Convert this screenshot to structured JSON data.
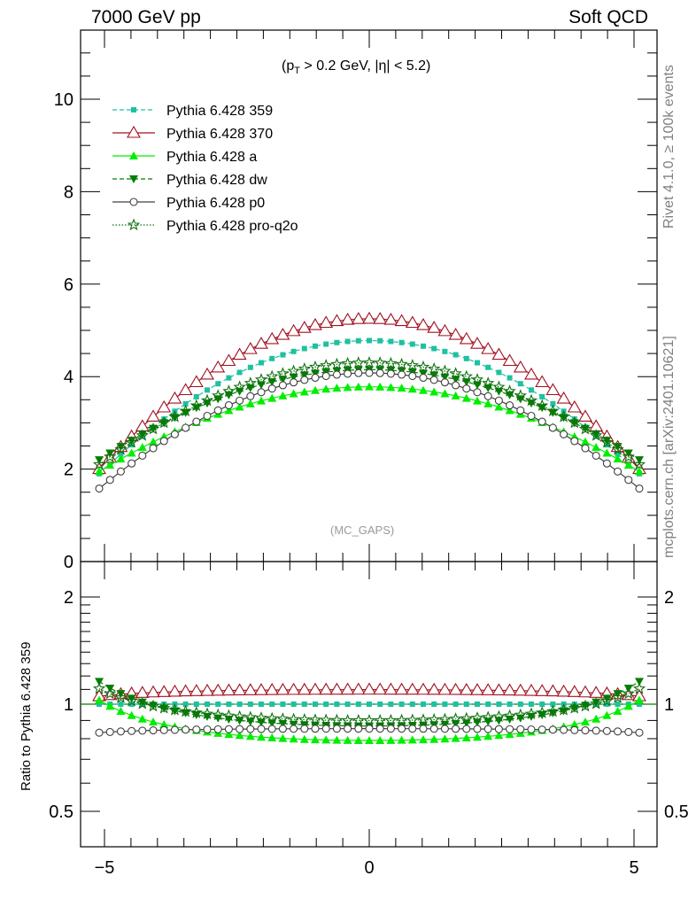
{
  "header": {
    "left": "7000 GeV pp",
    "right": "Soft QCD"
  },
  "side_labels": {
    "rivet": "Rivet 4.1.0, ≥ 100k events",
    "mcplots": "mcplots.cern.ch [arXiv:2401.10621]"
  },
  "cut_label": {
    "prefix": "(p",
    "sub": "T",
    "rest": " > 0.2 GeV, |η| < 5.2)"
  },
  "watermark": "(MC_GAPS)",
  "ratio_ylabel": "Ratio to Pythia 6.428 359",
  "colors": {
    "p359": "#20c0a0",
    "p370": "#a01020",
    "pa": "#00ee00",
    "pdw": "#008000",
    "pp0": "#404040",
    "pq2o": "#107010",
    "refline": "#008000"
  },
  "chart_data": [
    {
      "type": "line",
      "panel": "main",
      "xlim": [
        -5.35,
        5.35
      ],
      "ylim": [
        0,
        11.5
      ],
      "yticks": [
        0,
        2,
        4,
        6,
        8,
        10
      ],
      "ytick_labels": [
        "0",
        "2",
        "4",
        "6",
        "8",
        "10"
      ],
      "x_range": [
        -5.1,
        5.1
      ],
      "n_points": 51,
      "legend_position": "top-left",
      "series": [
        {
          "name": "Pythia 6.428 359",
          "key": "p359",
          "marker": "square",
          "dash": "dashed",
          "edge_value": 1.9,
          "peak_value": 4.78
        },
        {
          "name": "Pythia 6.428 370",
          "key": "p370",
          "marker": "triangle-open",
          "dash": "solid",
          "edge_value": 2.0,
          "peak_value": 5.25
        },
        {
          "name": "Pythia 6.428 a",
          "key": "pa",
          "marker": "triangle",
          "dash": "solid",
          "edge_value": 1.95,
          "peak_value": 3.78
        },
        {
          "name": "Pythia 6.428 dw",
          "key": "pdw",
          "marker": "triangle-down",
          "dash": "dashed",
          "edge_value": 2.2,
          "peak_value": 4.15
        },
        {
          "name": "Pythia 6.428 p0",
          "key": "pp0",
          "marker": "circle-open",
          "dash": "solid",
          "edge_value": 1.58,
          "peak_value": 4.08
        },
        {
          "name": "Pythia 6.428 pro-q2o",
          "key": "pq2o",
          "marker": "star-open",
          "dash": "dotted",
          "edge_value": 2.1,
          "peak_value": 4.3
        }
      ]
    },
    {
      "type": "line",
      "panel": "ratio",
      "ylabel": "Ratio to Pythia 6.428 359",
      "ylim": [
        0.4,
        2.5
      ],
      "log_y": true,
      "yticks": [
        0.5,
        1,
        2
      ],
      "ytick_labels": [
        "0.5",
        "1",
        "2"
      ],
      "xticks": [
        -5,
        0,
        5
      ],
      "xtick_labels": [
        "−5",
        "0",
        "5"
      ],
      "reference_value": 1.0
    }
  ]
}
